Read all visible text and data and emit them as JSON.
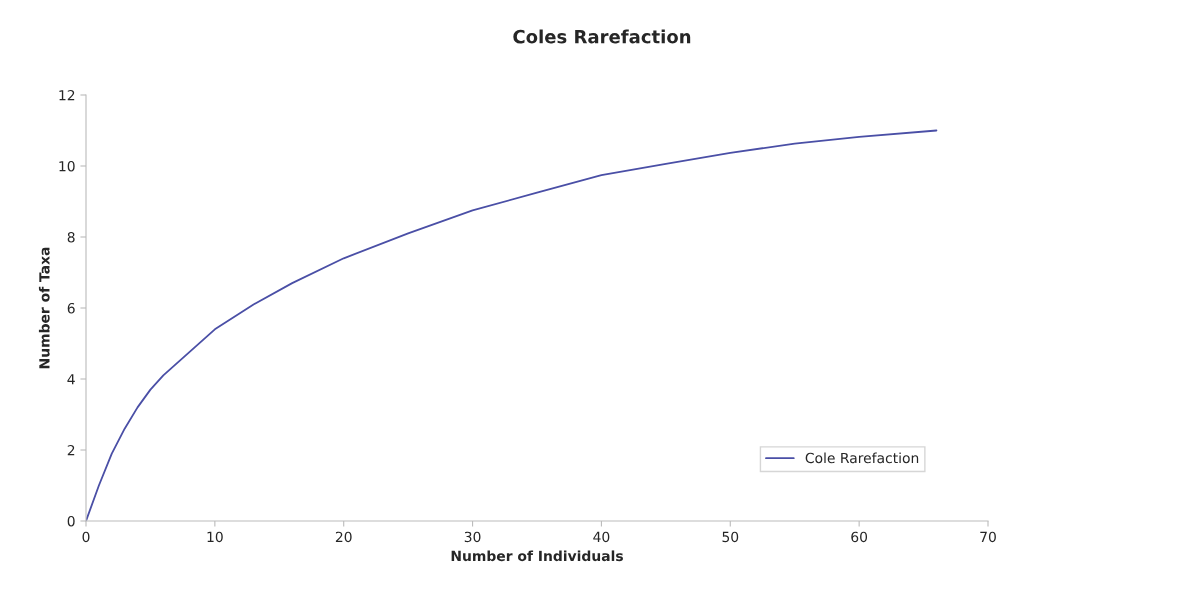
{
  "chart_data": {
    "type": "line",
    "title": "Coles Rarefaction",
    "xlabel": "Number of Individuals",
    "ylabel": "Number of Taxa",
    "x": [
      0,
      1,
      2,
      3,
      4,
      5,
      6,
      8,
      10,
      13,
      16,
      20,
      25,
      30,
      35,
      40,
      45,
      50,
      55,
      60,
      66
    ],
    "series": [
      {
        "name": "Cole Rarefaction",
        "color": "#4a4fa6",
        "values": [
          0,
          1.0,
          1.9,
          2.6,
          3.2,
          3.7,
          4.1,
          4.75,
          5.4,
          6.1,
          6.7,
          7.4,
          8.1,
          8.75,
          9.25,
          9.74,
          10.06,
          10.37,
          10.63,
          10.82,
          11.0
        ]
      }
    ],
    "xlim": [
      0,
      70
    ],
    "xticks": [
      0,
      10,
      20,
      30,
      40,
      50,
      60,
      70
    ],
    "ylim": [
      0,
      12
    ],
    "yticks": [
      0,
      2,
      4,
      6,
      8,
      10,
      12
    ],
    "grid": false,
    "legend": "bottom right",
    "marker": "none",
    "line_style": "solid"
  }
}
